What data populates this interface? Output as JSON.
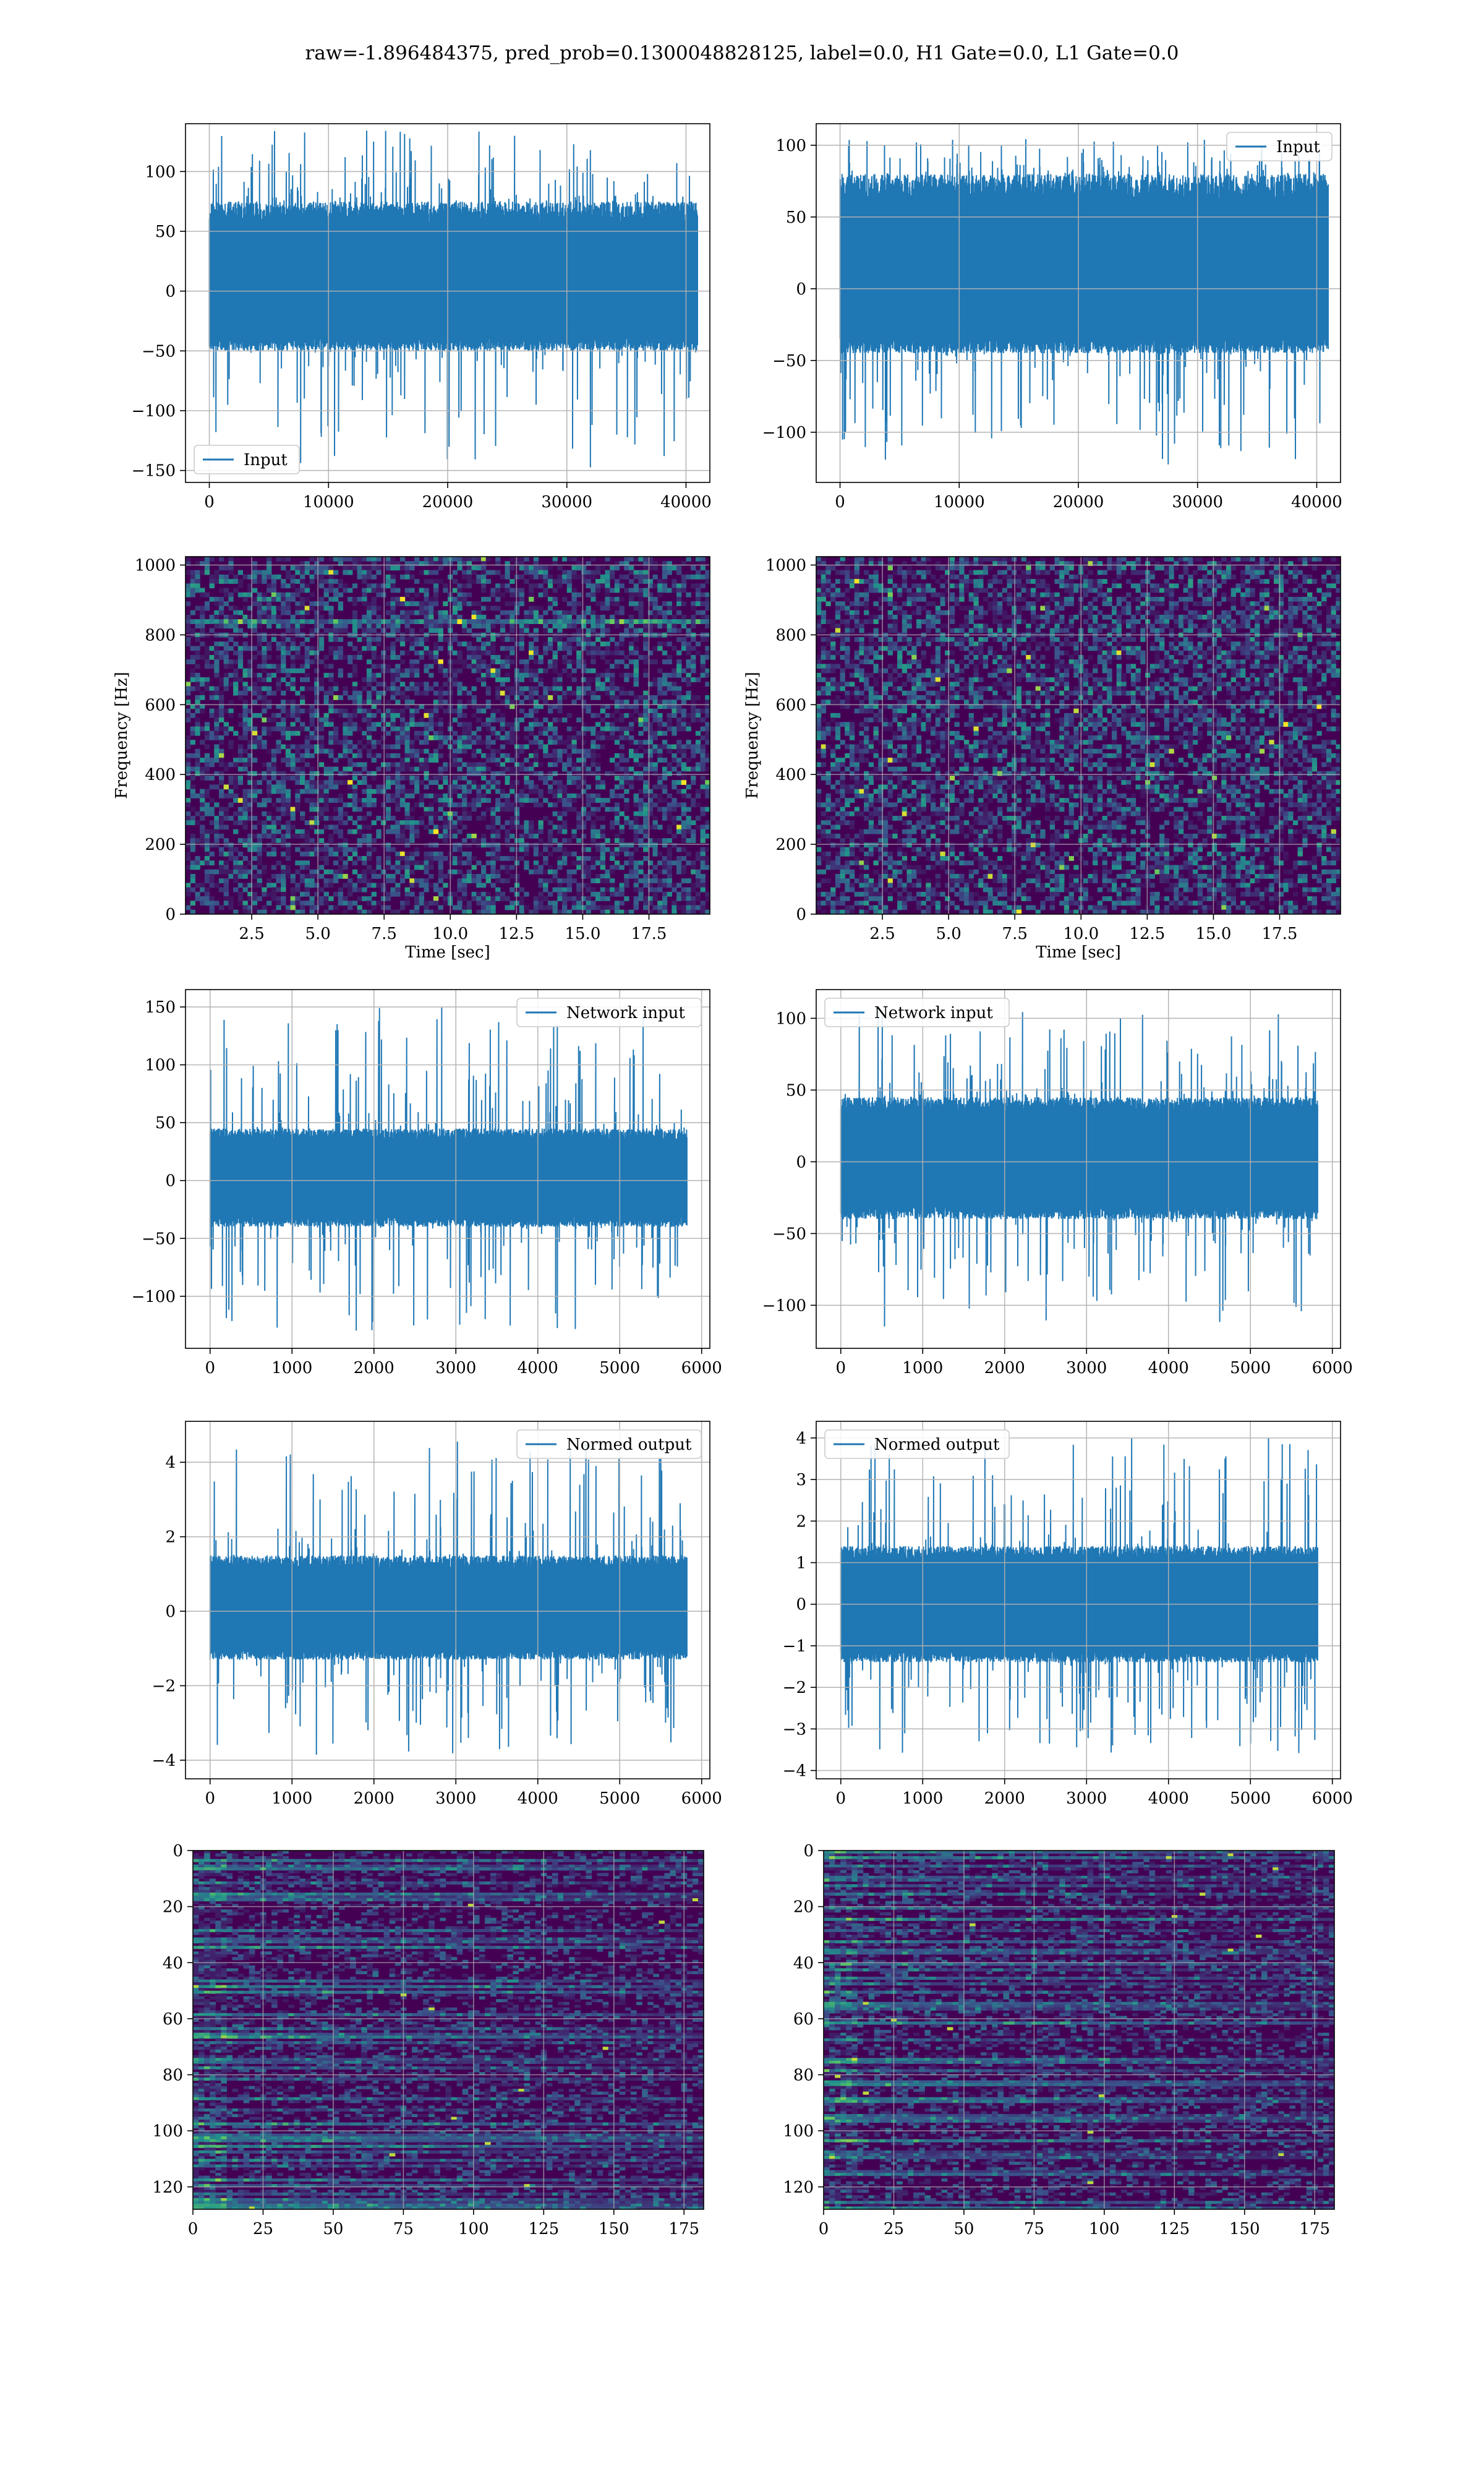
{
  "suptitle": "raw=-1.896484375, pred_prob=0.1300048828125, label=0.0, H1 Gate=0.0, L1 Gate=0.0",
  "colors": {
    "line": "#1f77b4",
    "grid": "#b0b0b0",
    "viridis": [
      "#440154",
      "#3b528b",
      "#21918c",
      "#5ec962",
      "#fde725"
    ]
  },
  "chart_data": [
    {
      "id": "h1-input",
      "type": "line",
      "xlim": [
        -2000,
        42000
      ],
      "ylim": [
        -160,
        140
      ],
      "xticks": [
        0,
        10000,
        20000,
        30000,
        40000
      ],
      "xtick_labels": [
        "0",
        "10000",
        "20000",
        "30000",
        "40000"
      ],
      "yticks": [
        -150,
        -100,
        -50,
        0,
        50,
        100
      ],
      "ytick_labels": [
        "−150",
        "−100",
        "−50",
        "0",
        "50",
        "100"
      ],
      "legend": {
        "label": "Input",
        "loc": "lower-left"
      },
      "series": [
        {
          "name": "Input",
          "x_range": [
            0,
            40960
          ],
          "core": [
            -50,
            75
          ],
          "peak": [
            -150,
            135
          ]
        }
      ],
      "xlabel": "",
      "ylabel": "",
      "grid": true
    },
    {
      "id": "l1-input",
      "type": "line",
      "xlim": [
        -2000,
        42000
      ],
      "ylim": [
        -135,
        115
      ],
      "xticks": [
        0,
        10000,
        20000,
        30000,
        40000
      ],
      "xtick_labels": [
        "0",
        "10000",
        "20000",
        "30000",
        "40000"
      ],
      "yticks": [
        -100,
        -50,
        0,
        50,
        100
      ],
      "ytick_labels": [
        "−100",
        "−50",
        "0",
        "50",
        "100"
      ],
      "legend": {
        "label": "Input",
        "loc": "upper-right"
      },
      "series": [
        {
          "name": "Input",
          "x_range": [
            0,
            40960
          ],
          "core": [
            -45,
            80
          ],
          "peak": [
            -125,
            105
          ]
        }
      ],
      "xlabel": "",
      "ylabel": "",
      "grid": true
    },
    {
      "id": "h1-spectrogram",
      "type": "heatmap",
      "xlim": [
        0,
        19.8
      ],
      "ylim": [
        0,
        1024
      ],
      "xticks": [
        2.5,
        5,
        7.5,
        10,
        12.5,
        15,
        17.5
      ],
      "xtick_labels": [
        "2.5",
        "5.0",
        "7.5",
        "10.0",
        "12.5",
        "15.0",
        "17.5"
      ],
      "yticks": [
        0,
        200,
        400,
        600,
        800,
        1000
      ],
      "ytick_labels": [
        "0",
        "200",
        "400",
        "600",
        "800",
        "1000"
      ],
      "xlabel": "Time [sec]",
      "ylabel": "Frequency [Hz]",
      "grid": true,
      "colormap": "viridis",
      "bright_bands": [
        840
      ]
    },
    {
      "id": "l1-spectrogram",
      "type": "heatmap",
      "xlim": [
        0,
        19.8
      ],
      "ylim": [
        0,
        1024
      ],
      "xticks": [
        2.5,
        5,
        7.5,
        10,
        12.5,
        15,
        17.5
      ],
      "xtick_labels": [
        "2.5",
        "5.0",
        "7.5",
        "10.0",
        "12.5",
        "15.0",
        "17.5"
      ],
      "yticks": [
        0,
        200,
        400,
        600,
        800,
        1000
      ],
      "ytick_labels": [
        "0",
        "200",
        "400",
        "600",
        "800",
        "1000"
      ],
      "xlabel": "Time [sec]",
      "ylabel": "Frequency [Hz]",
      "grid": true,
      "colormap": "viridis",
      "bright_bands": []
    },
    {
      "id": "h1-network-input",
      "type": "line",
      "xlim": [
        -300,
        6100
      ],
      "ylim": [
        -145,
        165
      ],
      "xticks": [
        0,
        1000,
        2000,
        3000,
        4000,
        5000,
        6000
      ],
      "xtick_labels": [
        "0",
        "1000",
        "2000",
        "3000",
        "4000",
        "5000",
        "6000"
      ],
      "yticks": [
        -100,
        -50,
        0,
        50,
        100,
        150
      ],
      "ytick_labels": [
        "−100",
        "−50",
        "0",
        "50",
        "100",
        "150"
      ],
      "legend": {
        "label": "Network input",
        "loc": "upper-right"
      },
      "series": [
        {
          "name": "Network input",
          "x_range": [
            0,
            5820
          ],
          "core": [
            -40,
            45
          ],
          "peak": [
            -130,
            150
          ]
        }
      ],
      "xlabel": "",
      "ylabel": "",
      "grid": true
    },
    {
      "id": "l1-network-input",
      "type": "line",
      "xlim": [
        -300,
        6100
      ],
      "ylim": [
        -130,
        120
      ],
      "xticks": [
        0,
        1000,
        2000,
        3000,
        4000,
        5000,
        6000
      ],
      "xtick_labels": [
        "0",
        "1000",
        "2000",
        "3000",
        "4000",
        "5000",
        "6000"
      ],
      "yticks": [
        -100,
        -50,
        0,
        50,
        100
      ],
      "ytick_labels": [
        "−100",
        "−50",
        "0",
        "50",
        "100"
      ],
      "legend": {
        "label": "Network input",
        "loc": "upper-left"
      },
      "series": [
        {
          "name": "Network input",
          "x_range": [
            0,
            5820
          ],
          "core": [
            -40,
            45
          ],
          "peak": [
            -115,
            105
          ]
        }
      ],
      "xlabel": "",
      "ylabel": "",
      "grid": true
    },
    {
      "id": "h1-normed-output",
      "type": "line",
      "xlim": [
        -300,
        6100
      ],
      "ylim": [
        -4.5,
        5.1
      ],
      "xticks": [
        0,
        1000,
        2000,
        3000,
        4000,
        5000,
        6000
      ],
      "xtick_labels": [
        "0",
        "1000",
        "2000",
        "3000",
        "4000",
        "5000",
        "6000"
      ],
      "yticks": [
        -4,
        -2,
        0,
        2,
        4
      ],
      "ytick_labels": [
        "−4",
        "−2",
        "0",
        "2",
        "4"
      ],
      "legend": {
        "label": "Normed output",
        "loc": "upper-right"
      },
      "series": [
        {
          "name": "Normed output",
          "x_range": [
            0,
            5820
          ],
          "core": [
            -1.3,
            1.5
          ],
          "peak": [
            -3.9,
            4.6
          ]
        }
      ],
      "xlabel": "",
      "ylabel": "",
      "grid": true
    },
    {
      "id": "l1-normed-output",
      "type": "line",
      "xlim": [
        -300,
        6100
      ],
      "ylim": [
        -4.2,
        4.4
      ],
      "xticks": [
        0,
        1000,
        2000,
        3000,
        4000,
        5000,
        6000
      ],
      "xtick_labels": [
        "0",
        "1000",
        "2000",
        "3000",
        "4000",
        "5000",
        "6000"
      ],
      "yticks": [
        -4,
        -3,
        -2,
        -1,
        0,
        1,
        2,
        3,
        4
      ],
      "ytick_labels": [
        "−4",
        "−3",
        "−2",
        "−1",
        "0",
        "1",
        "2",
        "3",
        "4"
      ],
      "legend": {
        "label": "Normed output",
        "loc": "upper-left"
      },
      "series": [
        {
          "name": "Normed output",
          "x_range": [
            0,
            5820
          ],
          "core": [
            -1.4,
            1.4
          ],
          "peak": [
            -3.6,
            4.0
          ]
        }
      ],
      "xlabel": "",
      "ylabel": "",
      "grid": true
    },
    {
      "id": "h1-feature-map",
      "type": "heatmap",
      "xlim": [
        0,
        182
      ],
      "ylim": [
        128,
        0
      ],
      "xticks": [
        0,
        25,
        50,
        75,
        100,
        125,
        150,
        175
      ],
      "xtick_labels": [
        "0",
        "25",
        "50",
        "75",
        "100",
        "125",
        "150",
        "175"
      ],
      "yticks": [
        0,
        20,
        40,
        60,
        80,
        100,
        120
      ],
      "ytick_labels": [
        "0",
        "20",
        "40",
        "60",
        "80",
        "100",
        "120"
      ],
      "xlabel": "",
      "ylabel": "",
      "grid": true,
      "colormap": "viridis",
      "rows": 128,
      "cols": 182
    },
    {
      "id": "l1-feature-map",
      "type": "heatmap",
      "xlim": [
        0,
        182
      ],
      "ylim": [
        128,
        0
      ],
      "xticks": [
        0,
        25,
        50,
        75,
        100,
        125,
        150,
        175
      ],
      "xtick_labels": [
        "0",
        "25",
        "50",
        "75",
        "100",
        "125",
        "150",
        "175"
      ],
      "yticks": [
        0,
        20,
        40,
        60,
        80,
        100,
        120
      ],
      "ytick_labels": [
        "0",
        "20",
        "40",
        "60",
        "80",
        "100",
        "120"
      ],
      "xlabel": "",
      "ylabel": "",
      "grid": true,
      "colormap": "viridis",
      "rows": 128,
      "cols": 182
    }
  ]
}
